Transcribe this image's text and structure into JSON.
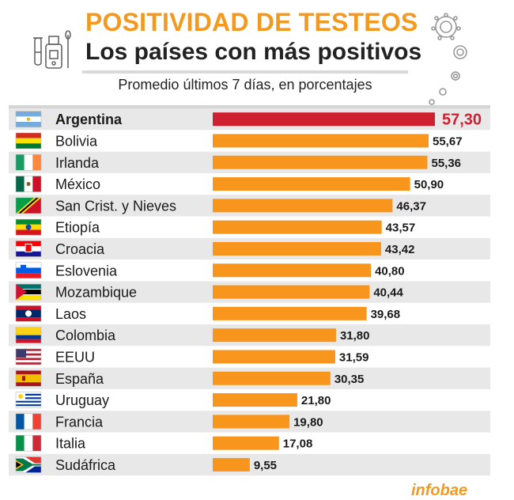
{
  "header": {
    "title": "POSITIVIDAD DE TESTEOS",
    "subtitle": "Los países con más positivos",
    "description": "Promedio últimos 7 días, en porcentajes"
  },
  "colors": {
    "highlight_bar": "#cf2030",
    "highlight_text": "#cf2030",
    "bar": "#f7951d",
    "title_orange": "#f39a1e",
    "row_shade": "#e8e8e8"
  },
  "chart_data": {
    "type": "bar",
    "orientation": "horizontal",
    "title": "POSITIVIDAD DE TESTEOS",
    "subtitle": "Los países con más positivos",
    "categories": [
      "Argentina",
      "Bolivia",
      "Irlanda",
      "México",
      "San Crist. y Nieves",
      "Etiopía",
      "Croacia",
      "Eslovenia",
      "Mozambique",
      "Laos",
      "Colombia",
      "EEUU",
      "España",
      "Uruguay",
      "Francia",
      "Italia",
      "Sudáfrica"
    ],
    "values": [
      57.3,
      55.67,
      55.36,
      50.9,
      46.37,
      43.57,
      43.42,
      40.8,
      40.44,
      39.68,
      31.8,
      31.59,
      30.35,
      21.8,
      19.8,
      17.08,
      9.55
    ],
    "value_labels": [
      "57,30",
      "55,67",
      "55,36",
      "50,90",
      "46,37",
      "43,57",
      "43,42",
      "40,80",
      "40,44",
      "39,68",
      "31,80",
      "31,59",
      "30,35",
      "21,80",
      "19,80",
      "17,08",
      "9,55"
    ],
    "flags": [
      "argentina-flag",
      "bolivia-flag",
      "ireland-flag",
      "mexico-flag",
      "saint-kitts-flag",
      "ethiopia-flag",
      "croatia-flag",
      "slovenia-flag",
      "mozambique-flag",
      "laos-flag",
      "colombia-flag",
      "usa-flag",
      "spain-flag",
      "uruguay-flag",
      "france-flag",
      "italy-flag",
      "south-africa-flag"
    ],
    "highlight_index": 0,
    "xlim": [
      0,
      57.3
    ],
    "grid": false,
    "legend": "none"
  },
  "footer": {
    "logo_fragment": "infobae"
  }
}
